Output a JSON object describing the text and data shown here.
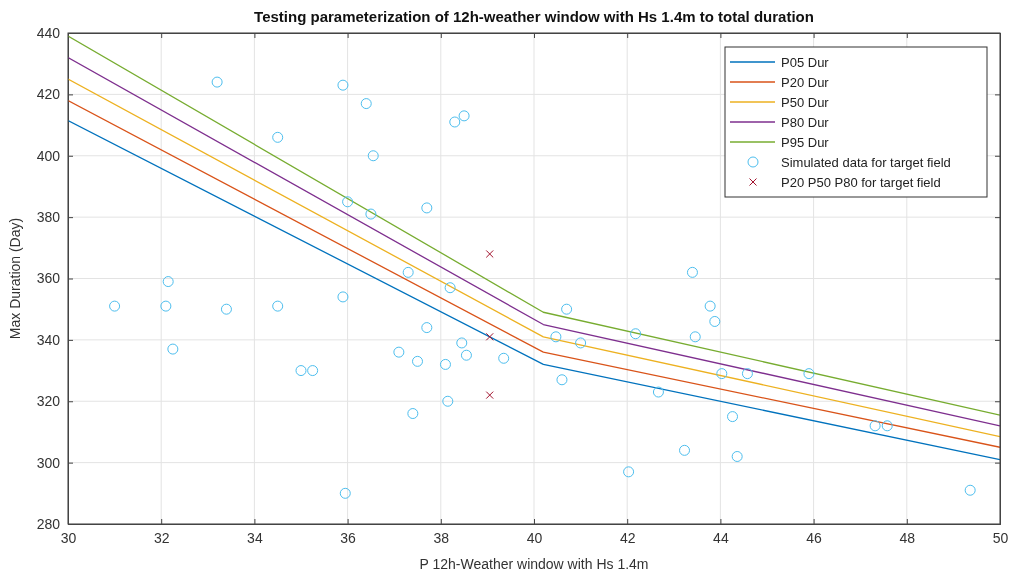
{
  "chart_data": {
    "type": "line",
    "title": "Testing parameterization of 12h-weather window with Hs 1.4m to total duration",
    "xlabel": "P 12h-Weather window with Hs 1.4m",
    "ylabel": "Max Duration (Day)",
    "xlim": [
      30,
      50
    ],
    "xticks": [
      30,
      32,
      34,
      36,
      38,
      40,
      42,
      44,
      46,
      48,
      50
    ],
    "ylim": [
      280,
      440
    ],
    "yticks": [
      280,
      300,
      320,
      340,
      360,
      380,
      400,
      420,
      440
    ],
    "grid": true,
    "legend": "top right",
    "series": [
      {
        "name": "P05 Dur",
        "color": "#0072bd",
        "marker": "none",
        "x": [
          30,
          40.2,
          50
        ],
        "values": [
          411.5,
          332,
          301
        ]
      },
      {
        "name": "P20 Dur",
        "color": "#d95319",
        "marker": "none",
        "x": [
          30,
          40.2,
          50
        ],
        "values": [
          418,
          336,
          305
        ]
      },
      {
        "name": "P50 Dur",
        "color": "#edb120",
        "marker": "none",
        "x": [
          30,
          40.2,
          50
        ],
        "values": [
          425,
          341,
          308.5
        ]
      },
      {
        "name": "P80 Dur",
        "color": "#7e2f8e",
        "marker": "none",
        "x": [
          30,
          40.2,
          50
        ],
        "values": [
          432,
          345,
          312
        ]
      },
      {
        "name": "P95 Dur",
        "color": "#77ac30",
        "marker": "none",
        "x": [
          30,
          40.2,
          50
        ],
        "values": [
          439,
          349,
          315.5
        ]
      },
      {
        "name": "Simulated data for target field",
        "type": "scatter",
        "color": "#4dbeee",
        "marker": "circle",
        "x": [
          31.0,
          32.1,
          32.15,
          32.25,
          33.2,
          33.4,
          34.5,
          34.5,
          35.0,
          35.25,
          35.9,
          35.9,
          35.95,
          36.0,
          36.4,
          36.5,
          36.55,
          37.1,
          37.3,
          37.4,
          37.5,
          37.7,
          37.7,
          38.1,
          38.15,
          38.2,
          38.3,
          38.45,
          38.5,
          38.55,
          39.35,
          40.7,
          40.47,
          41.0,
          40.6,
          42.18,
          42.67,
          42.03,
          43.23,
          43.46,
          43.78,
          43.88,
          43.4,
          44.03,
          44.58,
          44.26,
          44.36,
          45.9,
          47.32,
          47.58,
          49.36
        ],
        "values": [
          351,
          351,
          359,
          337,
          424,
          350,
          406,
          351,
          330,
          330,
          423,
          354,
          290,
          385,
          417,
          381,
          400,
          336,
          362,
          316,
          333,
          344,
          383,
          332,
          320,
          357,
          411,
          339,
          413,
          335,
          334,
          350,
          341,
          339,
          327,
          342,
          323,
          297,
          304,
          341,
          351,
          346,
          362,
          329,
          329,
          315,
          302,
          329,
          312,
          312,
          291
        ]
      },
      {
        "name": "P20 P50 P80 for target field",
        "type": "scatter",
        "color": "#a2142f",
        "marker": "cross",
        "x": [
          39.05,
          39.05,
          39.05
        ],
        "values": [
          368,
          341,
          322
        ]
      }
    ]
  }
}
